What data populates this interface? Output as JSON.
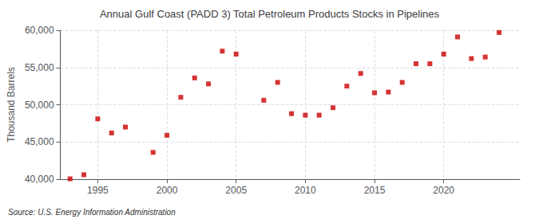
{
  "chart_data": {
    "type": "scatter",
    "title": "Annual Gulf Coast (PADD 3) Total Petroleum Products Stocks in Pipelines",
    "ylabel": "Thousand Barrels",
    "annotations": [
      "Source: U.S. Energy Information Administration"
    ],
    "x": [
      1993,
      1994,
      1995,
      1996,
      1997,
      1999,
      2000,
      2001,
      2002,
      2003,
      2004,
      2005,
      2007,
      2008,
      2009,
      2010,
      2011,
      2012,
      2013,
      2014,
      2015,
      2016,
      2017,
      2018,
      2019,
      2020,
      2021,
      2022,
      2023,
      2024
    ],
    "values": [
      40050,
      40600,
      48100,
      46200,
      47000,
      43600,
      45900,
      51000,
      53600,
      52800,
      57200,
      56800,
      50600,
      53000,
      48800,
      48600,
      48600,
      49600,
      52500,
      54200,
      51600,
      51700,
      53000,
      55500,
      55500,
      56800,
      59100,
      56200,
      56400,
      59700
    ],
    "color": "#cc0000",
    "marker": "square",
    "xlim": [
      1992.3,
      2025.5
    ],
    "xticks": [
      1995,
      2000,
      2005,
      2010,
      2015,
      2020
    ],
    "ylim": [
      40000,
      60000
    ],
    "yticks": [
      {
        "value": 40000,
        "label": "40,000"
      },
      {
        "value": 45000,
        "label": "45,000"
      },
      {
        "value": 50000,
        "label": "50,000"
      },
      {
        "value": 55000,
        "label": "55,000"
      },
      {
        "value": 60000,
        "label": "60,000"
      }
    ],
    "grid": true
  }
}
